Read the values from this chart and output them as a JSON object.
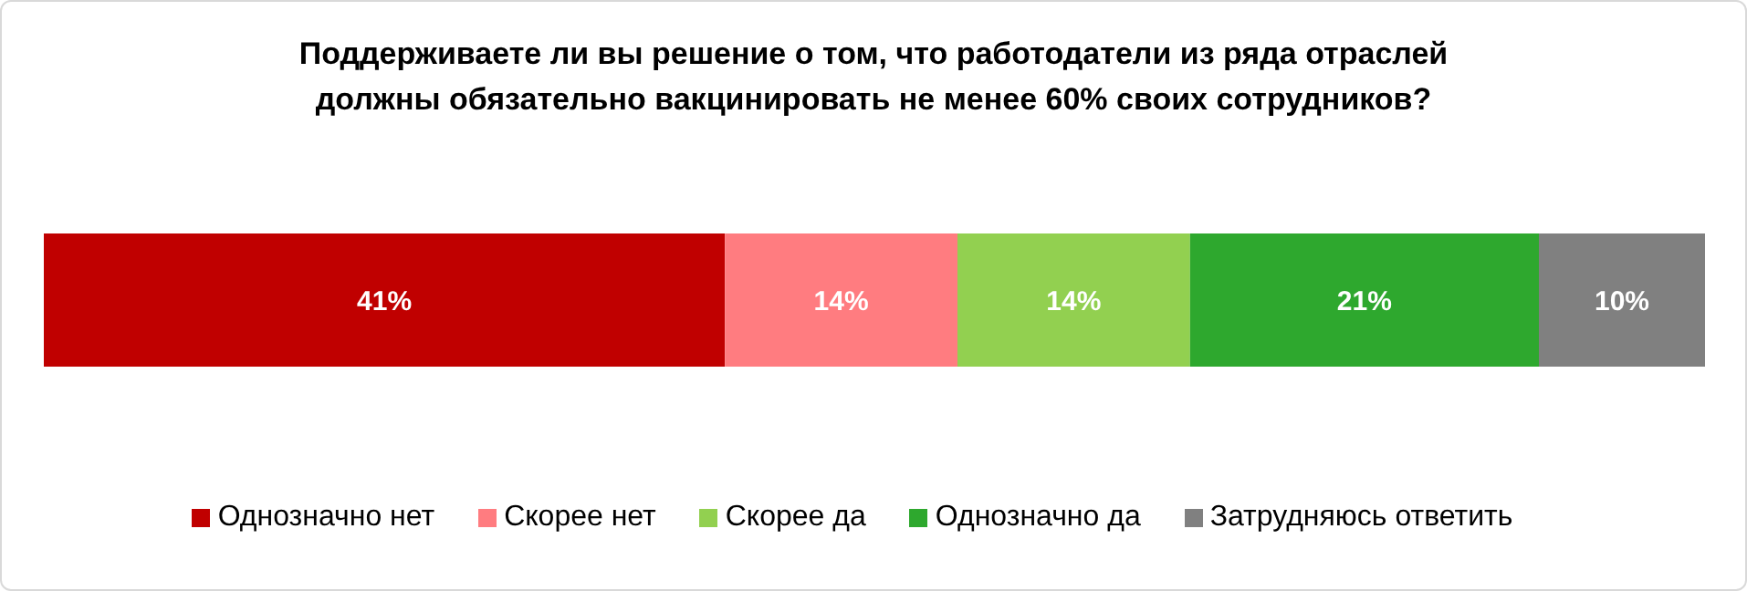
{
  "chart_data": {
    "type": "bar",
    "title": "Поддерживаете ли вы решение о том, что работодатели из ряда отраслей\nдолжны обязательно вакцинировать не менее 60% своих сотрудников?",
    "orientation": "horizontal",
    "stacked": true,
    "categories": [
      null
    ],
    "tick_labels": false,
    "legend": "bottom",
    "series": [
      {
        "name": "Однозначно нет",
        "color": "#c00000",
        "values": [
          41
        ],
        "value_labels": [
          "41%"
        ]
      },
      {
        "name": "Скорее нет",
        "color": "#ff7c80",
        "values": [
          14
        ],
        "value_labels": [
          "14%"
        ]
      },
      {
        "name": "Скорее да",
        "color": "#92d050",
        "values": [
          14
        ],
        "value_labels": [
          "14%"
        ]
      },
      {
        "name": "Однозначно да",
        "color": "#2ea82e",
        "values": [
          21
        ],
        "value_labels": [
          "21%"
        ]
      },
      {
        "name": "Затрудняюсь ответить",
        "color": "#808080",
        "values": [
          10
        ],
        "value_labels": [
          "10%"
        ]
      }
    ]
  }
}
